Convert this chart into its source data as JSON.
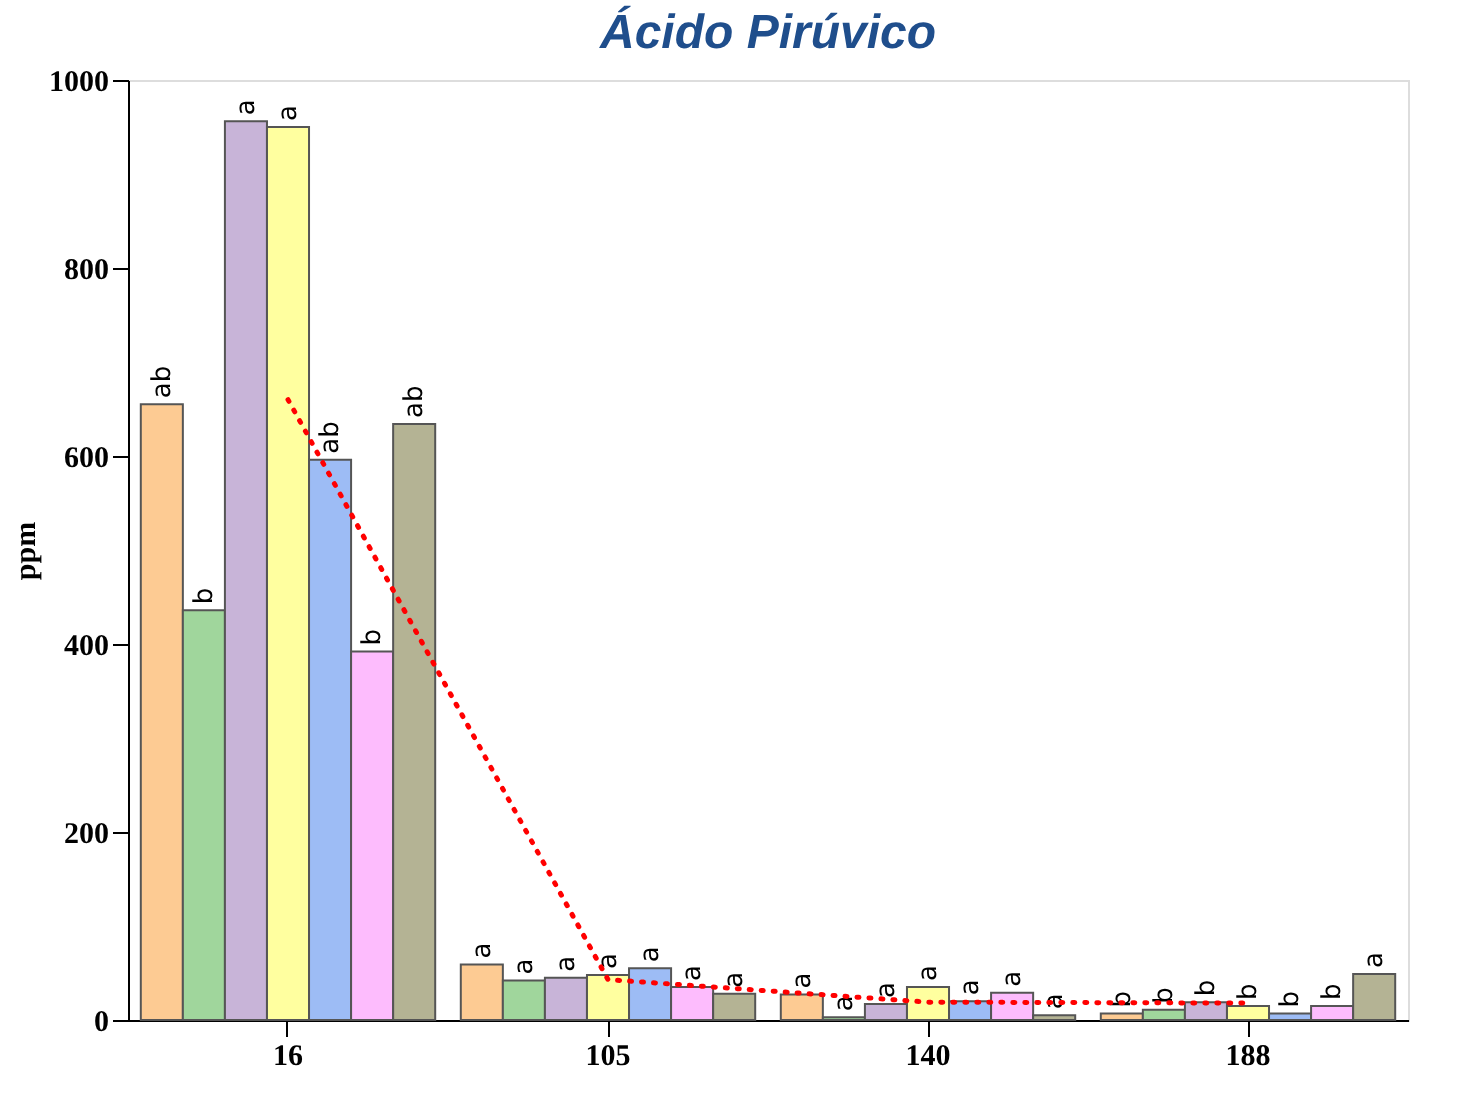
{
  "chart_data": {
    "type": "bar",
    "title": "Ácido Pirúvico",
    "ylabel": "ppm",
    "categories": [
      "16",
      "105",
      "140",
      "188"
    ],
    "ylim": [
      0,
      1000
    ],
    "yticks": [
      0,
      200,
      400,
      600,
      800,
      1000
    ],
    "grid": false,
    "series": [
      {
        "color": "#fdcb93",
        "values": [
          655,
          59,
          27,
          7
        ],
        "value_labels": [
          "ab",
          "a",
          "a",
          "b"
        ]
      },
      {
        "color": "#a0d69c",
        "values": [
          436,
          42,
          3,
          11
        ],
        "value_labels": [
          "b",
          "a",
          "a",
          "b"
        ]
      },
      {
        "color": "#c8b4d8",
        "values": [
          956,
          45,
          17,
          19
        ],
        "value_labels": [
          "a",
          "a",
          "a",
          "b"
        ]
      },
      {
        "color": "#ffff9f",
        "values": [
          950,
          48,
          35,
          15
        ],
        "value_labels": [
          "a",
          "a",
          "a",
          "b"
        ]
      },
      {
        "color": "#9dbcf5",
        "values": [
          596,
          55,
          20,
          7
        ],
        "value_labels": [
          "ab",
          "a",
          "a",
          "b"
        ]
      },
      {
        "color": "#fdbcfd",
        "values": [
          392,
          35,
          29,
          15
        ],
        "value_labels": [
          "b",
          "a",
          "a",
          "b"
        ]
      },
      {
        "color": "#b4b394",
        "values": [
          634,
          28,
          5,
          49
        ],
        "value_labels": [
          "ab",
          "a",
          "a",
          "a"
        ]
      },
      {
        "type": "line",
        "color": "#ff0000",
        "line_style": "dotted",
        "marker": "none",
        "values": [
          660,
          43,
          19,
          18
        ]
      }
    ]
  }
}
